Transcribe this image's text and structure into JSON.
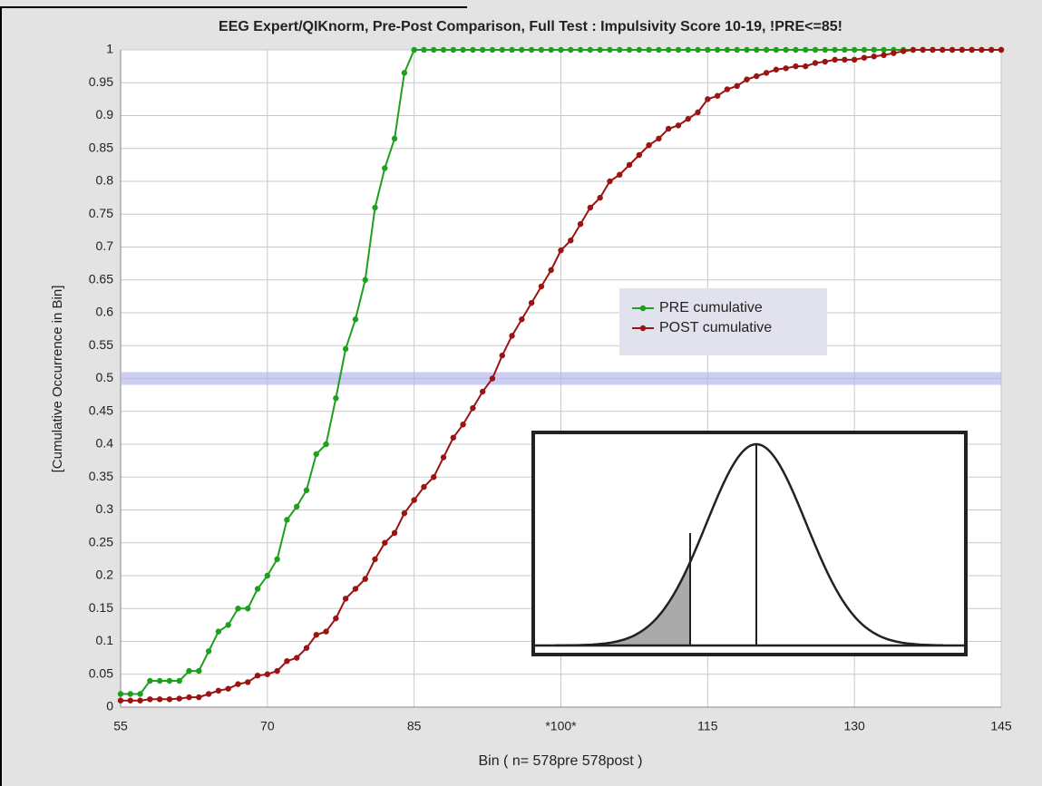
{
  "chart_data": {
    "type": "line",
    "title": "EEG Expert/QIKnorm, Pre-Post Comparison, Full Test : Impulsivity Score  10-19, !PRE<=85!",
    "xlabel": "Bin  ( n= 578pre 578post )",
    "ylabel": "[Cumulative Occurrence in Bin]",
    "x": [
      55,
      56,
      57,
      58,
      59,
      60,
      61,
      62,
      63,
      64,
      65,
      66,
      67,
      68,
      69,
      70,
      71,
      72,
      73,
      74,
      75,
      76,
      77,
      78,
      79,
      80,
      81,
      82,
      83,
      84,
      85,
      86,
      87,
      88,
      89,
      90,
      91,
      92,
      93,
      94,
      95,
      96,
      97,
      98,
      99,
      100,
      101,
      102,
      103,
      104,
      105,
      106,
      107,
      108,
      109,
      110,
      111,
      112,
      113,
      114,
      115,
      116,
      117,
      118,
      119,
      120,
      121,
      122,
      123,
      124,
      125,
      126,
      127,
      128,
      129,
      130,
      131,
      132,
      133,
      134,
      135,
      136,
      137,
      138,
      139,
      140,
      141,
      142,
      143,
      144,
      145
    ],
    "series": [
      {
        "name": "PRE cumulative",
        "color": "#1ea01e",
        "values": [
          0.02,
          0.02,
          0.02,
          0.04,
          0.04,
          0.04,
          0.04,
          0.055,
          0.055,
          0.085,
          0.115,
          0.125,
          0.15,
          0.15,
          0.18,
          0.2,
          0.225,
          0.285,
          0.305,
          0.33,
          0.385,
          0.4,
          0.47,
          0.545,
          0.59,
          0.65,
          0.76,
          0.82,
          0.865,
          0.965,
          1,
          1,
          1,
          1,
          1,
          1,
          1,
          1,
          1,
          1,
          1,
          1,
          1,
          1,
          1,
          1,
          1,
          1,
          1,
          1,
          1,
          1,
          1,
          1,
          1,
          1,
          1,
          1,
          1,
          1,
          1,
          1,
          1,
          1,
          1,
          1,
          1,
          1,
          1,
          1,
          1,
          1,
          1,
          1,
          1,
          1,
          1,
          1,
          1,
          1,
          1,
          1,
          1,
          1,
          1,
          1,
          1,
          1,
          1,
          1,
          1
        ]
      },
      {
        "name": "POST cumulative",
        "color": "#9b1414",
        "values": [
          0.01,
          0.01,
          0.01,
          0.012,
          0.012,
          0.012,
          0.013,
          0.015,
          0.015,
          0.02,
          0.025,
          0.028,
          0.035,
          0.038,
          0.048,
          0.05,
          0.055,
          0.07,
          0.075,
          0.09,
          0.11,
          0.115,
          0.135,
          0.165,
          0.18,
          0.195,
          0.225,
          0.25,
          0.265,
          0.295,
          0.315,
          0.335,
          0.35,
          0.38,
          0.41,
          0.43,
          0.455,
          0.48,
          0.5,
          0.535,
          0.565,
          0.59,
          0.615,
          0.64,
          0.665,
          0.695,
          0.71,
          0.735,
          0.76,
          0.775,
          0.8,
          0.81,
          0.825,
          0.84,
          0.855,
          0.865,
          0.88,
          0.885,
          0.895,
          0.905,
          0.925,
          0.93,
          0.94,
          0.945,
          0.955,
          0.96,
          0.965,
          0.97,
          0.972,
          0.975,
          0.975,
          0.98,
          0.982,
          0.985,
          0.985,
          0.985,
          0.988,
          0.99,
          0.992,
          0.995,
          0.998,
          1,
          1,
          1,
          1,
          1,
          1,
          1,
          1,
          1,
          1
        ]
      }
    ],
    "xlim": [
      55,
      145
    ],
    "xticks": [
      55,
      70,
      85,
      {
        "value": 100,
        "label": "*100*"
      },
      115,
      130,
      145
    ],
    "ylim": [
      0,
      1
    ],
    "yticks": [
      0,
      0.05,
      0.1,
      0.15,
      0.2,
      0.25,
      0.3,
      0.35,
      0.4,
      0.45,
      0.5,
      0.55,
      0.6,
      0.65,
      0.7,
      0.75,
      0.8,
      0.85,
      0.9,
      0.95,
      1
    ],
    "reference_line": 0.5,
    "grid": true,
    "legend": "center"
  }
}
